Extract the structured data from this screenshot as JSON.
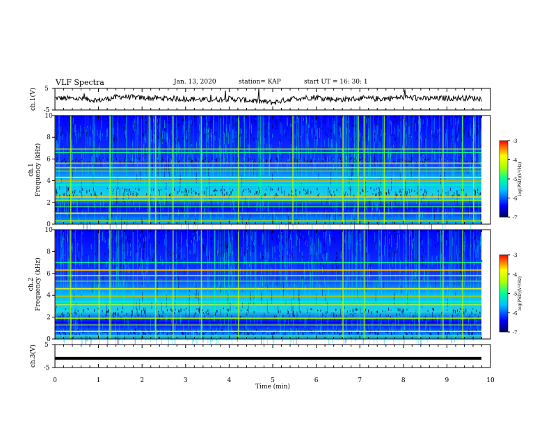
{
  "header": {
    "title": "VLF Spectra",
    "date": "Jan. 13, 2020",
    "station": "station= KAP",
    "start": "start  UT =   16: 30: 1"
  },
  "colors": {
    "spectrogram_scale": [
      "#00005a",
      "#0000ff",
      "#00bfff",
      "#00ff99",
      "#aaff00",
      "#ffff00",
      "#ff0000"
    ],
    "trace": "#000000"
  },
  "chart_data": [
    {
      "type": "line",
      "panel": "ch1-waveform",
      "ylabel": "ch.1(V)",
      "yticks": [
        "5",
        "-5"
      ],
      "ylim": [
        -5,
        5
      ],
      "xlim": [
        0,
        10
      ],
      "description_series": "noisy broadband voltage trace near 0 V (roughly -2 to +3 V)",
      "x": [
        0,
        0.5,
        1,
        1.5,
        2,
        2.5,
        3,
        3.5,
        4,
        4.5,
        5,
        5.5,
        6,
        6.5,
        7,
        7.5,
        8,
        8.5,
        9,
        9.5,
        9.8
      ],
      "y": [
        0.5,
        0.3,
        -0.5,
        1.2,
        0.6,
        0.4,
        0.2,
        -0.3,
        0.2,
        -0.6,
        -1.6,
        0.4,
        0.9,
        -0.2,
        0.3,
        0.2,
        0.9,
        0.2,
        0.5,
        0.6,
        0.2
      ]
    },
    {
      "type": "heatmap",
      "panel": "ch1-spectrogram",
      "ylabel": "ch.1\nFrequency (kHz)",
      "yticks": [
        "0",
        "2",
        "4",
        "6",
        "8",
        "10"
      ],
      "ylim": [
        0,
        10
      ],
      "xlim": [
        0,
        9.8
      ],
      "colorbar": {
        "label": "log(PSD)(V²/Hz)",
        "ticks": [
          "-3",
          "-4",
          "-5",
          "-6",
          "-7"
        ],
        "range": [
          -7,
          -3
        ]
      },
      "bands_khz": [
        0.3,
        1.0,
        1.6,
        2.2,
        2.5,
        3.6,
        4.0,
        4.3,
        4.9,
        5.2,
        5.6,
        6.6,
        6.9
      ],
      "bright_columns_min": [
        0.35,
        1.25,
        2.15,
        2.3,
        2.7,
        3.35,
        4.2,
        5.45,
        6.6,
        6.95,
        7.1,
        7.55,
        8.0,
        8.35,
        8.9,
        9.35,
        9.6
      ]
    },
    {
      "type": "heatmap",
      "panel": "ch2-spectrogram",
      "ylabel": "ch.2\nFrequency (kHz)",
      "yticks": [
        "0",
        "2",
        "4",
        "6",
        "8",
        "10"
      ],
      "ylim": [
        0,
        10
      ],
      "xlim": [
        0,
        9.8
      ],
      "colorbar": {
        "label": "log(PSD)(V²/Hz)",
        "ticks": [
          "-3",
          "-4",
          "-5",
          "-6",
          "-7"
        ],
        "range": [
          -7,
          -3
        ]
      },
      "bands_khz": [
        0.3,
        0.7,
        1.3,
        1.9,
        3.1,
        3.4,
        3.9,
        4.6,
        5.3,
        5.8,
        6.3,
        7.0
      ],
      "bright_columns_min": [
        0.35,
        1.0,
        1.25,
        2.3,
        2.7,
        3.35,
        4.2,
        6.6,
        7.1,
        8.35,
        8.9,
        9.35
      ]
    },
    {
      "type": "line",
      "panel": "ch3-waveform",
      "ylabel": "ch.3(V)",
      "yticks": [
        "5",
        "-5"
      ],
      "ylim": [
        -5,
        5
      ],
      "xlim": [
        0,
        10
      ],
      "x": [
        0,
        9.8
      ],
      "y": [
        -1,
        -1
      ]
    }
  ],
  "xaxis": {
    "label": "Time (min)",
    "ticks": [
      "0",
      "1",
      "2",
      "3",
      "4",
      "5",
      "6",
      "7",
      "8",
      "9",
      "10"
    ]
  }
}
